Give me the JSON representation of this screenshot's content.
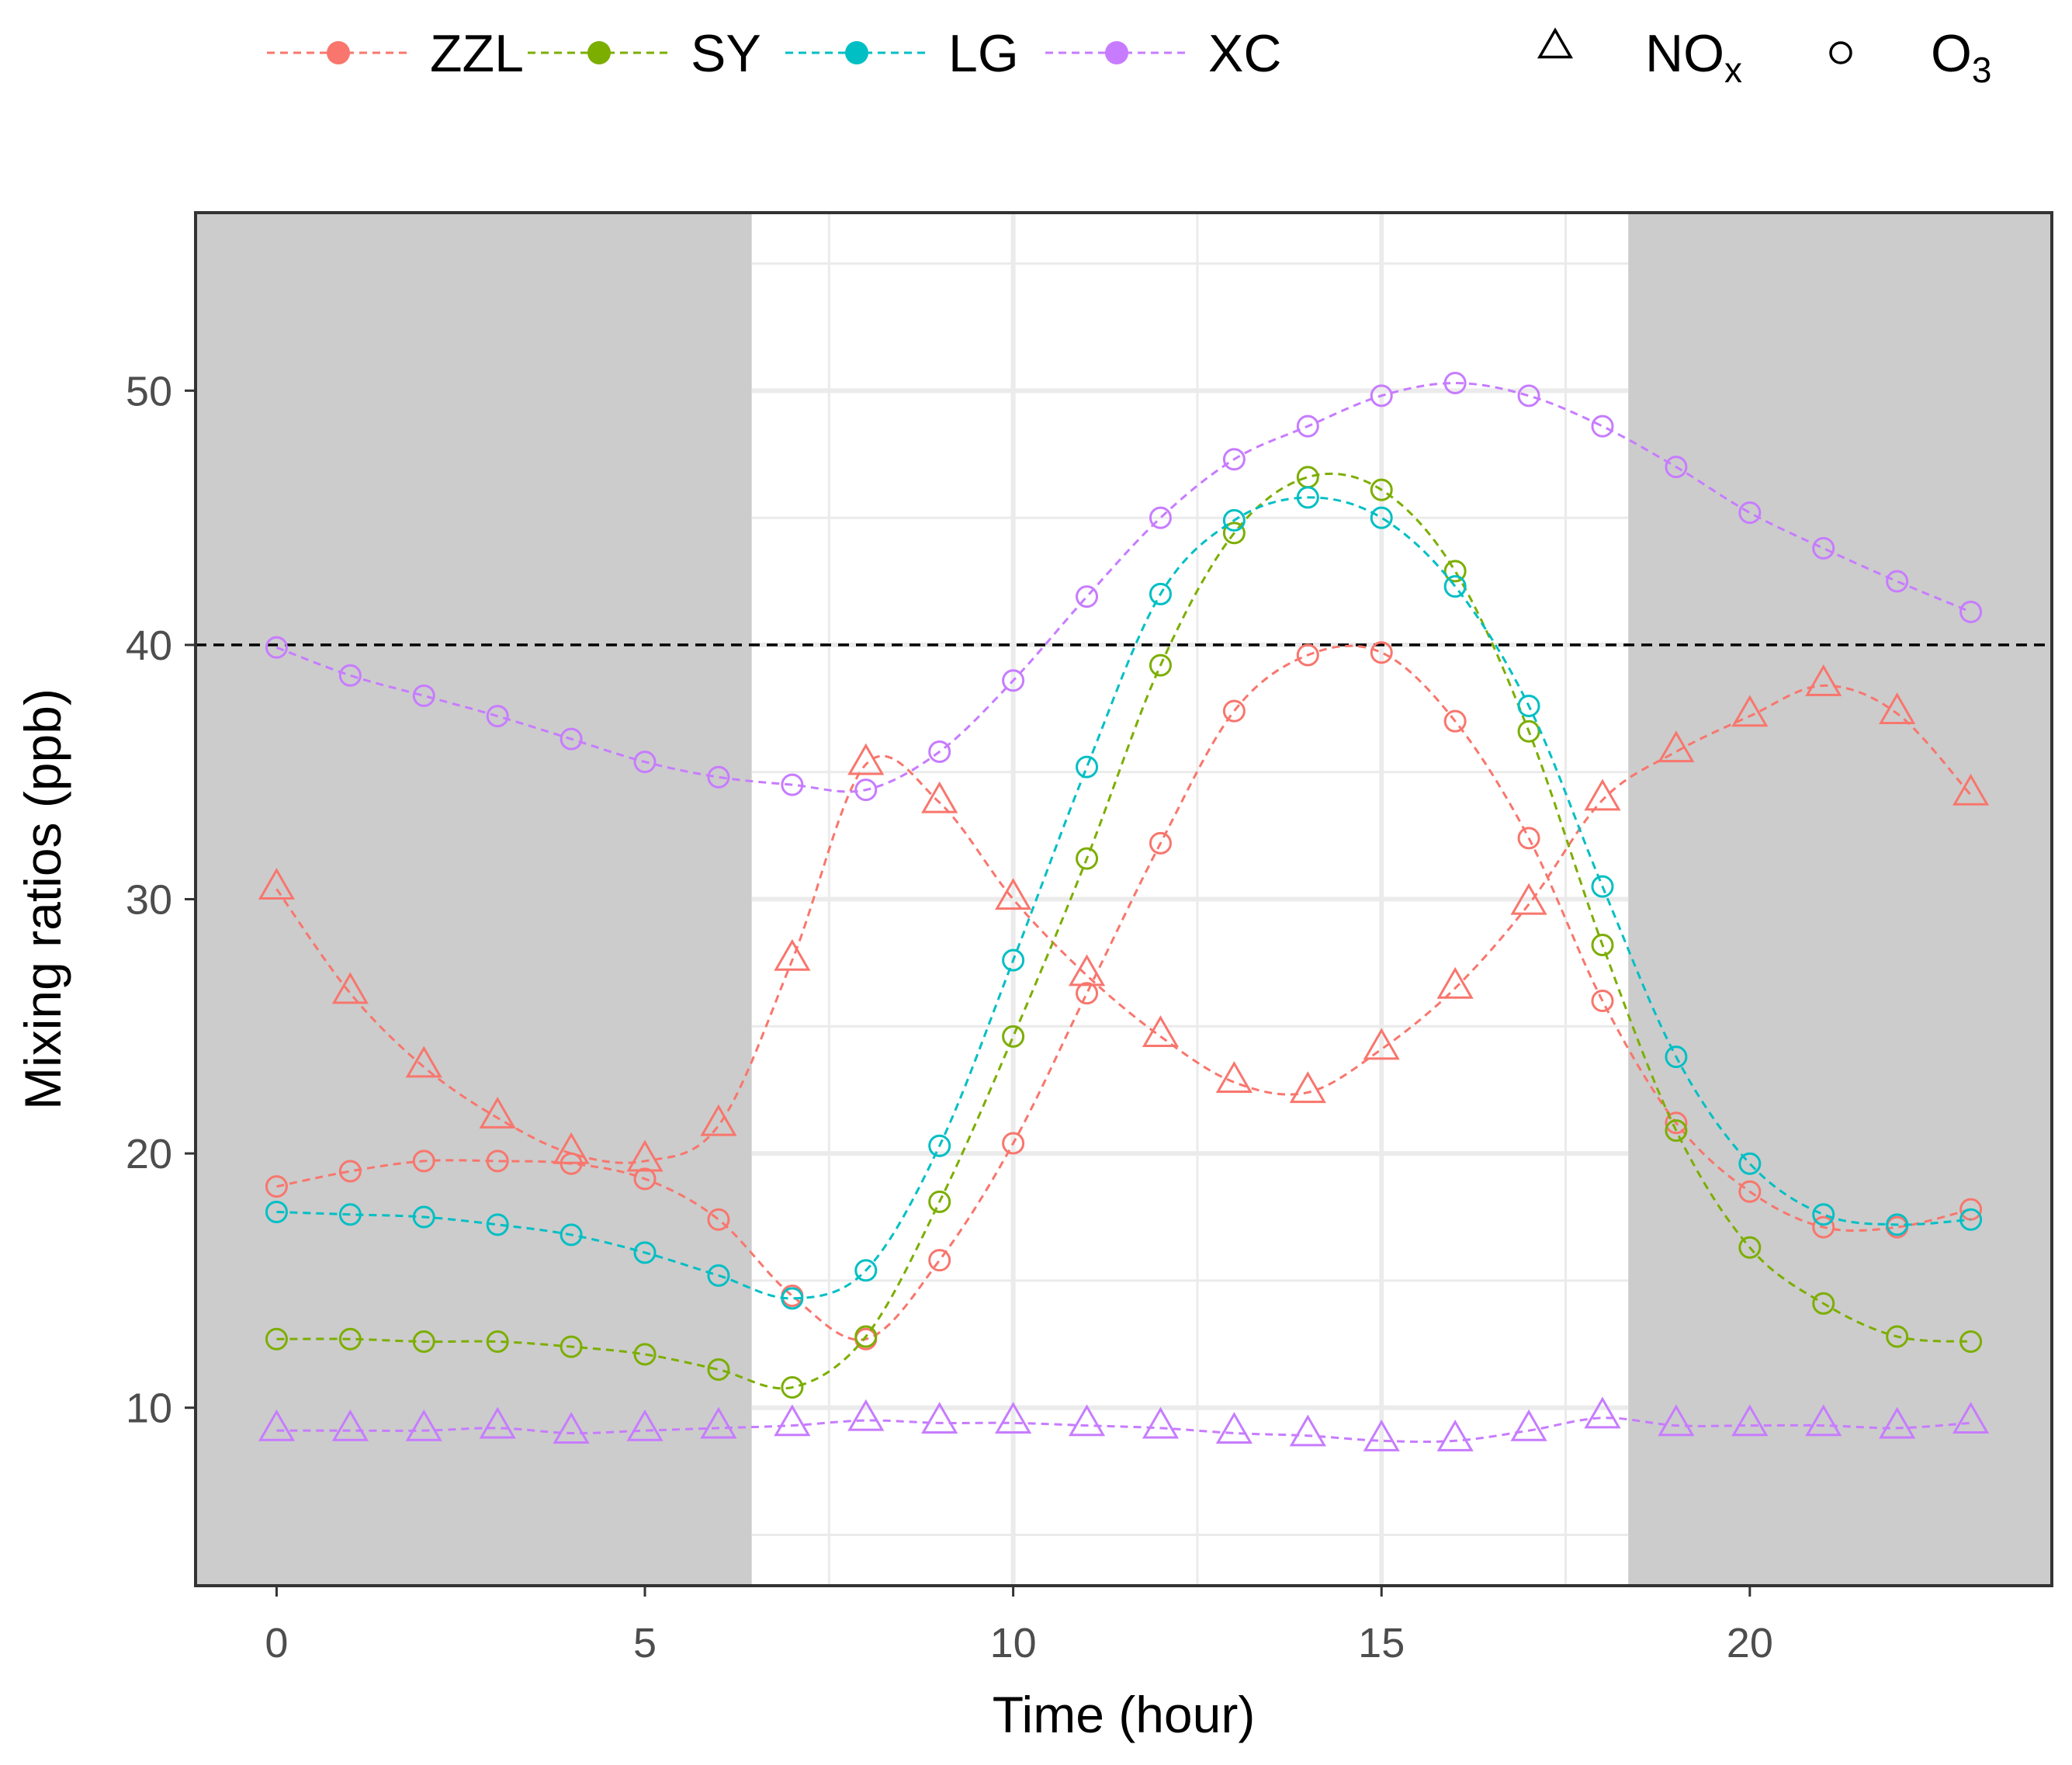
{
  "chart_data": {
    "type": "line",
    "title": "",
    "xlabel": "Time (hour)",
    "ylabel": "Mixing ratios (ppb)",
    "xlim": [
      -1.1,
      24.1
    ],
    "ylim": [
      3.0,
      57.0
    ],
    "x_ticks": [
      0,
      5,
      10,
      15,
      20
    ],
    "y_ticks": [
      10,
      20,
      30,
      40,
      50
    ],
    "x_tick_labels": [
      "0",
      "5",
      "10",
      "15",
      "20"
    ],
    "y_tick_labels": [
      "10",
      "20",
      "30",
      "40",
      "50"
    ],
    "grid": true,
    "night_shading": [
      {
        "from": -1.1,
        "to": 6.45
      },
      {
        "from": 18.35,
        "to": 24.1
      }
    ],
    "reference_line": {
      "y": 40,
      "style": "dashed",
      "color": "#000000"
    },
    "x": [
      0,
      1,
      2,
      3,
      4,
      5,
      6,
      7,
      8,
      9,
      10,
      11,
      12,
      13,
      14,
      15,
      16,
      17,
      18,
      19,
      20,
      21,
      22,
      23
    ],
    "legend": {
      "position": "top",
      "sites": [
        {
          "name": "ZZL",
          "color": "#F8766D"
        },
        {
          "name": "SY",
          "color": "#7CAE00"
        },
        {
          "name": "LG",
          "color": "#00BFC4"
        },
        {
          "name": "XC",
          "color": "#C77CFF"
        }
      ],
      "pollutants": [
        {
          "name": "NO",
          "sub": "x",
          "shape": "triangle"
        },
        {
          "name": "O",
          "sub": "3",
          "shape": "circle"
        }
      ]
    },
    "series": [
      {
        "site": "ZZL",
        "pollutant": "NOx",
        "shape": "triangle",
        "color": "#F8766D",
        "values": [
          30.4,
          26.3,
          23.4,
          21.4,
          20.0,
          19.7,
          21.1,
          27.6,
          35.3,
          33.8,
          30.0,
          27.0,
          24.6,
          22.8,
          22.4,
          24.1,
          26.5,
          29.8,
          33.9,
          35.8,
          37.2,
          38.4,
          37.3,
          34.1
        ]
      },
      {
        "site": "ZZL",
        "pollutant": "O3",
        "shape": "circle",
        "color": "#F8766D",
        "values": [
          18.7,
          19.3,
          19.7,
          19.7,
          19.6,
          19.0,
          17.4,
          14.4,
          12.7,
          15.8,
          20.4,
          26.3,
          32.2,
          37.4,
          39.6,
          39.7,
          37.0,
          32.4,
          26.0,
          21.2,
          18.5,
          17.1,
          17.1,
          17.8
        ]
      },
      {
        "site": "SY",
        "pollutant": "O3",
        "shape": "circle",
        "color": "#7CAE00",
        "values": [
          12.7,
          12.7,
          12.6,
          12.6,
          12.4,
          12.1,
          11.5,
          10.8,
          12.8,
          18.1,
          24.6,
          31.6,
          39.2,
          44.4,
          46.6,
          46.1,
          42.9,
          36.6,
          28.2,
          20.9,
          16.3,
          14.1,
          12.8,
          12.6
        ]
      },
      {
        "site": "LG",
        "pollutant": "O3",
        "shape": "circle",
        "color": "#00BFC4",
        "values": [
          17.7,
          17.6,
          17.5,
          17.2,
          16.8,
          16.1,
          15.2,
          14.3,
          15.4,
          20.3,
          27.6,
          35.2,
          42.0,
          44.9,
          45.8,
          45.0,
          42.3,
          37.6,
          30.5,
          23.8,
          19.6,
          17.6,
          17.2,
          17.4
        ]
      },
      {
        "site": "XC",
        "pollutant": "NOx",
        "shape": "triangle",
        "color": "#C77CFF",
        "values": [
          9.1,
          9.1,
          9.1,
          9.2,
          9.0,
          9.1,
          9.2,
          9.3,
          9.5,
          9.4,
          9.4,
          9.3,
          9.2,
          9.0,
          8.9,
          8.7,
          8.7,
          9.1,
          9.6,
          9.3,
          9.3,
          9.3,
          9.2,
          9.4
        ]
      },
      {
        "site": "XC",
        "pollutant": "O3",
        "shape": "circle",
        "color": "#C77CFF",
        "values": [
          39.9,
          38.8,
          38.0,
          37.2,
          36.3,
          35.4,
          34.8,
          34.5,
          34.3,
          35.8,
          38.6,
          41.9,
          45.0,
          47.3,
          48.6,
          49.8,
          50.3,
          49.8,
          48.6,
          47.0,
          45.2,
          43.8,
          42.5,
          41.3
        ]
      }
    ]
  }
}
